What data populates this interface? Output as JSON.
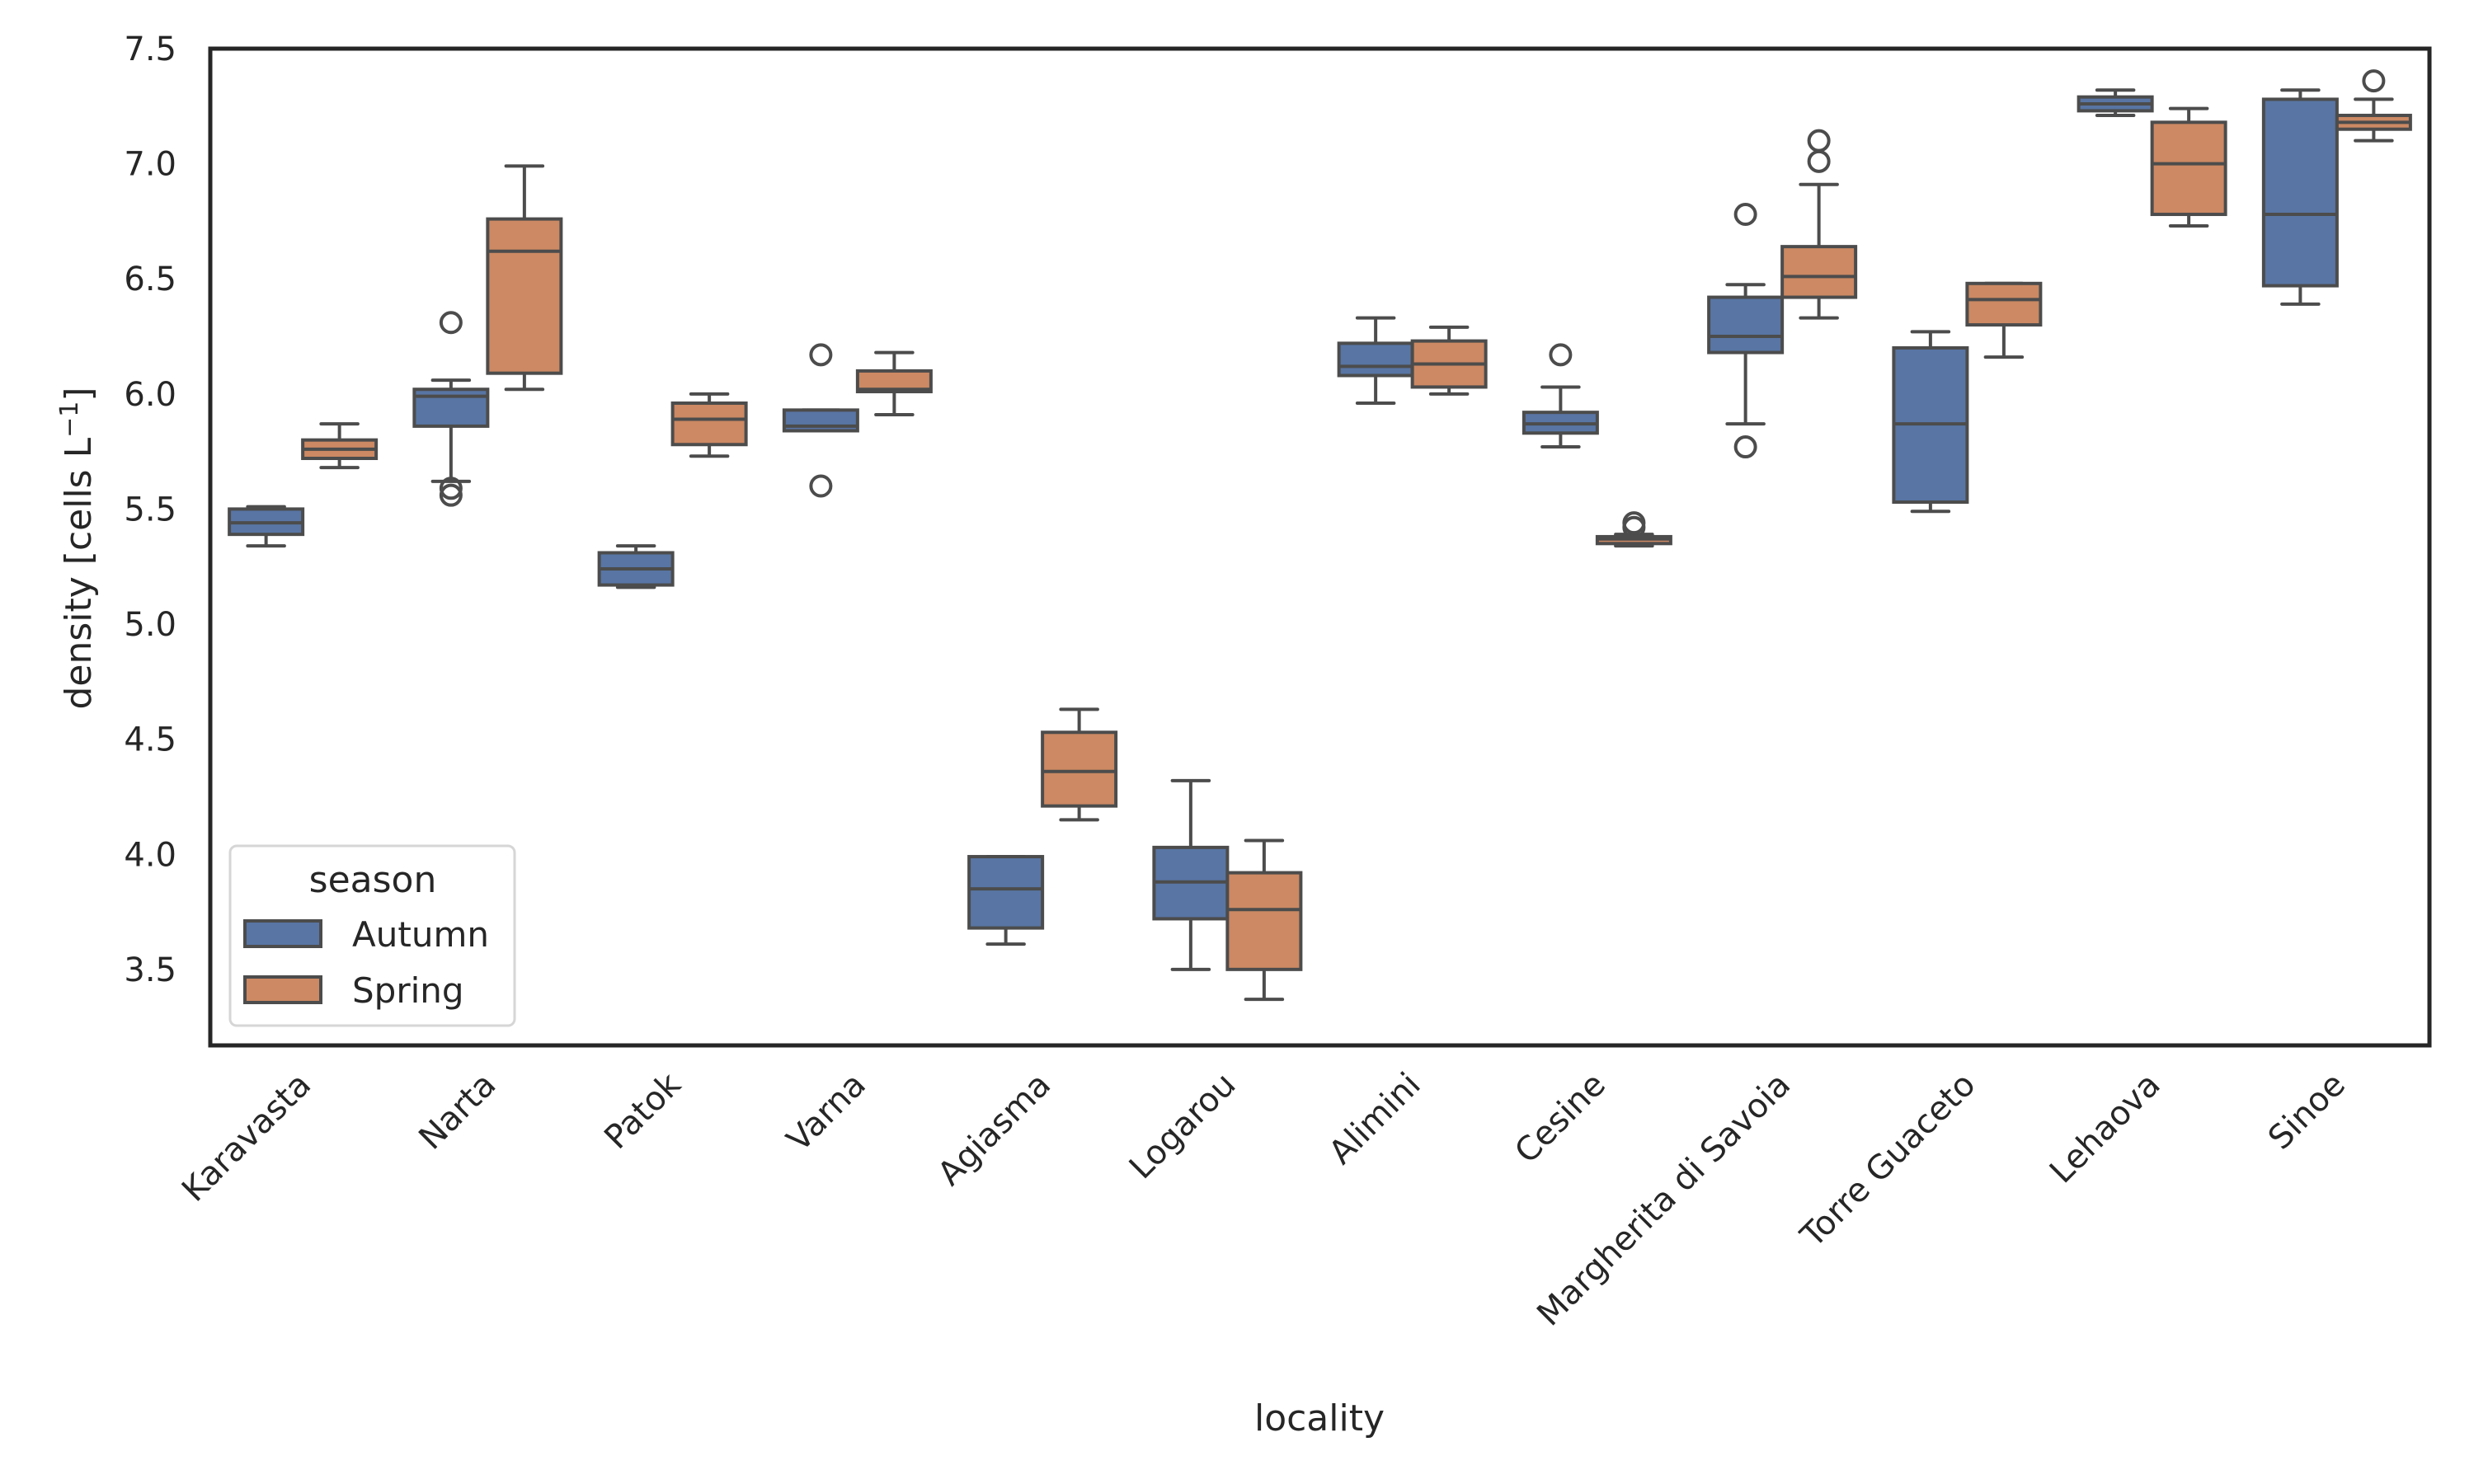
{
  "chart_data": {
    "type": "box",
    "title": "",
    "xlabel": "locality",
    "ylabel": "density [cells L",
    "ylabel_superscript": "−1",
    "ylabel_suffix": "]",
    "ylim": [
      3.17,
      7.5
    ],
    "yticks": [
      3.5,
      4.0,
      4.5,
      5.0,
      5.5,
      6.0,
      6.5,
      7.0,
      7.5
    ],
    "ytick_labels": [
      "3.5",
      "4.0",
      "4.5",
      "5.0",
      "5.5",
      "6.0",
      "6.5",
      "7.0",
      "7.5"
    ],
    "grid": false,
    "categories": [
      "Karavasta",
      "Narta",
      "Patok",
      "Varna",
      "Agiasma",
      "Logarou",
      "Alimini",
      "Cesine",
      "Margherita di Savoia",
      "Torre Guaceto",
      "Lehaova",
      "Sinoe"
    ],
    "legend": {
      "title": "season",
      "placement": "lower-left",
      "entries": [
        "Autumn",
        "Spring"
      ]
    },
    "colors": {
      "Autumn": "#5875a4",
      "Spring": "#cc8963",
      "line": "#4c4c4c",
      "frame": "#262626"
    },
    "series": [
      {
        "name": "Autumn",
        "boxes": [
          {
            "low": 5.34,
            "q1": 5.39,
            "median": 5.44,
            "q3": 5.5,
            "high": 5.51,
            "outliers": []
          },
          {
            "low": 5.62,
            "q1": 5.86,
            "median": 5.99,
            "q3": 6.02,
            "high": 6.06,
            "outliers": [
              6.31,
              5.59,
              5.56
            ]
          },
          {
            "low": 5.16,
            "q1": 5.17,
            "median": 5.24,
            "q3": 5.31,
            "high": 5.34,
            "outliers": []
          },
          {
            "low": 5.84,
            "q1": 5.84,
            "median": 5.86,
            "q3": 5.93,
            "high": 5.93,
            "outliers": [
              6.17,
              5.6
            ]
          },
          {
            "low": 3.61,
            "q1": 3.68,
            "median": 3.85,
            "q3": 3.99,
            "high": 3.99,
            "outliers": []
          },
          {
            "low": 3.5,
            "q1": 3.72,
            "median": 3.88,
            "q3": 4.03,
            "high": 4.32,
            "outliers": []
          },
          {
            "low": 5.96,
            "q1": 6.08,
            "median": 6.12,
            "q3": 6.22,
            "high": 6.33,
            "outliers": []
          },
          {
            "low": 5.77,
            "q1": 5.83,
            "median": 5.87,
            "q3": 5.92,
            "high": 6.03,
            "outliers": [
              6.17
            ]
          },
          {
            "low": 5.87,
            "q1": 6.18,
            "median": 6.25,
            "q3": 6.42,
            "high": 6.475,
            "outliers": [
              6.78,
              5.77
            ]
          },
          {
            "low": 5.49,
            "q1": 5.53,
            "median": 5.87,
            "q3": 6.2,
            "high": 6.27,
            "outliers": []
          },
          {
            "low": 7.21,
            "q1": 7.23,
            "median": 7.26,
            "q3": 7.29,
            "high": 7.32,
            "outliers": []
          },
          {
            "low": 6.39,
            "q1": 6.47,
            "median": 6.78,
            "q3": 7.28,
            "high": 7.32,
            "outliers": []
          }
        ]
      },
      {
        "name": "Spring",
        "boxes": [
          {
            "low": 5.68,
            "q1": 5.72,
            "median": 5.76,
            "q3": 5.8,
            "high": 5.87,
            "outliers": []
          },
          {
            "low": 6.02,
            "q1": 6.09,
            "median": 6.62,
            "q3": 6.76,
            "high": 6.99,
            "outliers": []
          },
          {
            "low": 5.73,
            "q1": 5.78,
            "median": 5.89,
            "q3": 5.96,
            "high": 6.0,
            "outliers": []
          },
          {
            "low": 5.91,
            "q1": 6.01,
            "median": 6.02,
            "q3": 6.1,
            "high": 6.18,
            "outliers": []
          },
          {
            "low": 4.15,
            "q1": 4.21,
            "median": 4.36,
            "q3": 4.53,
            "high": 4.63,
            "outliers": []
          },
          {
            "low": 3.37,
            "q1": 3.5,
            "median": 3.76,
            "q3": 3.92,
            "high": 4.06,
            "outliers": []
          },
          {
            "low": 6.0,
            "q1": 6.03,
            "median": 6.13,
            "q3": 6.23,
            "high": 6.29,
            "outliers": []
          },
          {
            "low": 5.34,
            "q1": 5.35,
            "median": 5.37,
            "q3": 5.38,
            "high": 5.39,
            "outliers": [
              5.44,
              5.42
            ]
          },
          {
            "low": 6.33,
            "q1": 6.42,
            "median": 6.51,
            "q3": 6.64,
            "high": 6.91,
            "outliers": [
              7.1,
              7.01
            ]
          },
          {
            "low": 6.16,
            "q1": 6.3,
            "median": 6.41,
            "q3": 6.48,
            "high": 6.48,
            "outliers": []
          },
          {
            "low": 6.73,
            "q1": 6.78,
            "median": 7.0,
            "q3": 7.18,
            "high": 7.24,
            "outliers": []
          },
          {
            "low": 7.1,
            "q1": 7.15,
            "median": 7.18,
            "q3": 7.21,
            "high": 7.28,
            "outliers": [
              7.36
            ]
          }
        ]
      }
    ]
  }
}
